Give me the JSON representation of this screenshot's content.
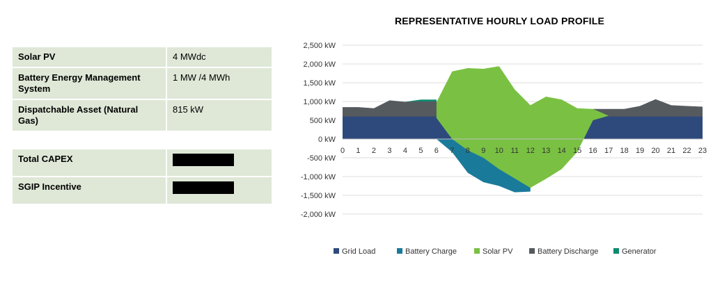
{
  "specs": {
    "solar": {
      "label": "Solar PV",
      "value": "4 MWdc"
    },
    "battery": {
      "label": "Battery Energy Management System",
      "value": "1 MW /4 MWh"
    },
    "dispatchable": {
      "label": "Dispatchable Asset (Natural Gas)",
      "value": "815 kW"
    },
    "capex": {
      "label": "Total CAPEX"
    },
    "sgip": {
      "label": "SGIP Incentive"
    }
  },
  "chart_data": {
    "type": "area",
    "title": "REPRESENTATIVE HOURLY LOAD PROFILE",
    "xlabel": "",
    "ylabel": "",
    "ylim": [
      -2000,
      2500
    ],
    "yticks": [
      {
        "value": 2500,
        "label": "2,500 kW"
      },
      {
        "value": 2000,
        "label": "2,000 kW"
      },
      {
        "value": 1500,
        "label": "1,500 kW"
      },
      {
        "value": 1000,
        "label": "1,000 kW"
      },
      {
        "value": 500,
        "label": "500 kW"
      },
      {
        "value": 0,
        "label": "0 kW"
      },
      {
        "value": -500,
        "label": "-500 kW"
      },
      {
        "value": -1000,
        "label": "-1,000 kW"
      },
      {
        "value": -1500,
        "label": "-1,500 kW"
      },
      {
        "value": -2000,
        "label": "-2,000 kW"
      }
    ],
    "categories": [
      "0",
      "1",
      "2",
      "3",
      "4",
      "5",
      "6",
      "7",
      "8",
      "9",
      "10",
      "11",
      "12",
      "13",
      "14",
      "15",
      "16",
      "17",
      "18",
      "19",
      "20",
      "21",
      "22",
      "23"
    ],
    "grid": true,
    "legend_position": "bottom",
    "series": [
      {
        "name": "Battery Discharge",
        "color": "#555a5f",
        "values": [
          850,
          850,
          820,
          1030,
          990,
          1000,
          1000,
          600,
          600,
          600,
          600,
          600,
          600,
          600,
          600,
          600,
          800,
          800,
          800,
          880,
          1060,
          900,
          880,
          860
        ]
      },
      {
        "name": "Generator",
        "color": "#0e8a6e",
        "values": [
          0,
          0,
          0,
          0,
          0,
          1050,
          1050,
          0,
          0,
          0,
          0,
          0,
          0,
          0,
          0,
          0,
          0,
          0,
          0,
          0,
          0,
          0,
          0,
          0
        ]
      },
      {
        "name": "Grid Load",
        "color": "#2e4a7d",
        "values": [
          600,
          600,
          600,
          600,
          600,
          600,
          600,
          600,
          600,
          600,
          600,
          600,
          600,
          600,
          600,
          600,
          600,
          600,
          600,
          600,
          600,
          600,
          600,
          600
        ]
      },
      {
        "name": "Battery Charge",
        "color": "#1a7a9a",
        "values": [
          0,
          0,
          0,
          0,
          0,
          0,
          0,
          -350,
          -900,
          -1150,
          -1250,
          -1420,
          -1400,
          null,
          null,
          null,
          null,
          null,
          null,
          null,
          null,
          null,
          null,
          null
        ]
      },
      {
        "name": "Solar PV",
        "color": "#7ac143",
        "upper": [
          null,
          null,
          null,
          null,
          null,
          null,
          980,
          1800,
          1890,
          1870,
          1940,
          1320,
          900,
          1130,
          1050,
          820,
          800,
          620,
          null,
          null,
          null,
          null,
          null,
          null
        ],
        "lower": [
          null,
          null,
          null,
          null,
          null,
          null,
          560,
          0,
          -300,
          -500,
          -800,
          -1050,
          -1300,
          -1060,
          -800,
          -340,
          500,
          620,
          null,
          null,
          null,
          null,
          null,
          null
        ]
      }
    ],
    "legend": [
      "Grid Load",
      "Battery Charge",
      "Solar PV",
      "Battery Discharge",
      "Generator"
    ]
  }
}
